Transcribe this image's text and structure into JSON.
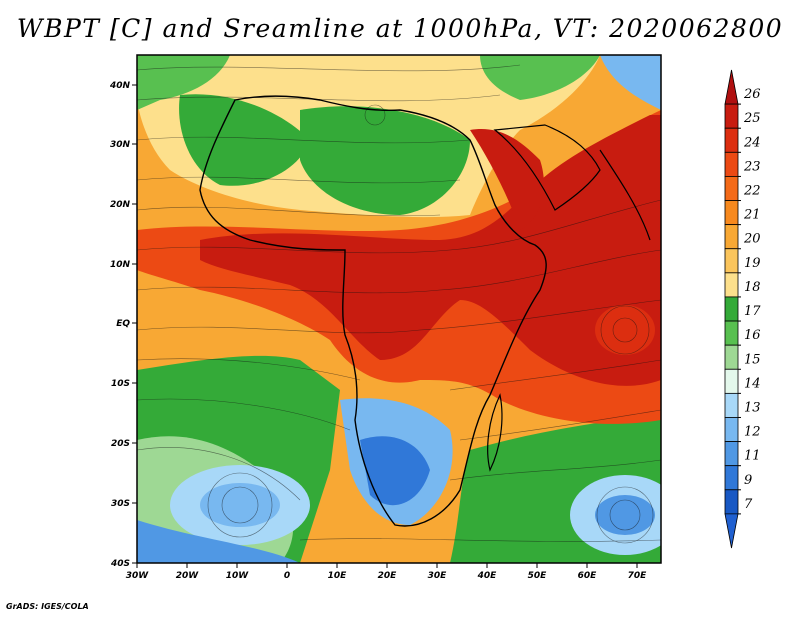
{
  "title": "WBPT [C] and Sreamline at 1000hPa, VT: 2020062800",
  "credit": "GrADS: IGES/COLA",
  "map": {
    "lat_ticks": [
      "40N",
      "30N",
      "20N",
      "10N",
      "EQ",
      "10S",
      "20S",
      "30S",
      "40S"
    ],
    "lon_ticks": [
      "30W",
      "20W",
      "10W",
      "0",
      "10E",
      "20E",
      "30E",
      "40E",
      "50E",
      "60E",
      "70E"
    ],
    "lat_range": [
      -40,
      45
    ],
    "lon_range": [
      -30,
      75
    ]
  },
  "colorbar": {
    "labels": [
      "26",
      "25",
      "24",
      "23",
      "22",
      "21",
      "20",
      "19",
      "18",
      "17",
      "16",
      "15",
      "14",
      "13",
      "12",
      "11",
      "9",
      "7"
    ],
    "colors": [
      "#b01010",
      "#c81c10",
      "#dc2e10",
      "#ec4a14",
      "#f46a18",
      "#f7891e",
      "#f8a834",
      "#fbc55c",
      "#fde08c",
      "#34aa38",
      "#58c050",
      "#9ed894",
      "#e4f8ec",
      "#a8d8f8",
      "#78b8f0",
      "#5098e4",
      "#3078d8",
      "#1858c4",
      "#2060d0"
    ]
  }
}
